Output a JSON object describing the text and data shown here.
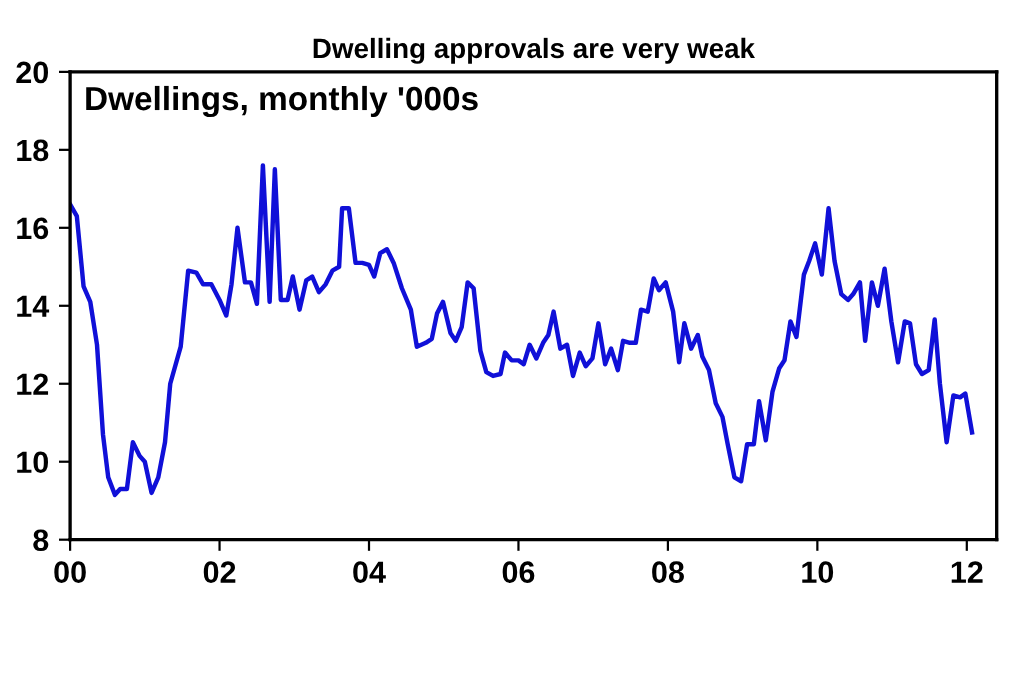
{
  "chart_data": {
    "type": "line",
    "title": "Dwelling approvals are very weak",
    "annotations": [
      "Dwellings, monthly '000s"
    ],
    "xlim": [
      2000,
      2012.4
    ],
    "xticks": [
      {
        "value": 2000,
        "label": "00"
      },
      {
        "value": 2002,
        "label": "02"
      },
      {
        "value": 2004,
        "label": "04"
      },
      {
        "value": 2006,
        "label": "06"
      },
      {
        "value": 2008,
        "label": "08"
      },
      {
        "value": 2010,
        "label": "10"
      },
      {
        "value": 2012,
        "label": "12"
      }
    ],
    "ylim": [
      8,
      20
    ],
    "yticks": [
      8,
      10,
      12,
      14,
      16,
      18,
      20
    ],
    "marker": "none",
    "line_style": "solid",
    "series": [
      {
        "color": "#1010d8",
        "x": [
          2000.0,
          2000.09,
          2000.18,
          2000.27,
          2000.36,
          2000.44,
          2000.51,
          2000.6,
          2000.67,
          2000.76,
          2000.84,
          2000.93,
          2001.0,
          2001.09,
          2001.18,
          2001.27,
          2001.34,
          2001.48,
          2001.58,
          2001.69,
          2001.78,
          2001.89,
          2002.0,
          2002.09,
          2002.16,
          2002.24,
          2002.34,
          2002.42,
          2002.5,
          2002.58,
          2002.67,
          2002.74,
          2002.82,
          2002.91,
          2002.98,
          2003.07,
          2003.16,
          2003.24,
          2003.33,
          2003.42,
          2003.51,
          2003.6,
          2003.64,
          2003.73,
          2003.82,
          2003.91,
          2004.0,
          2004.07,
          2004.15,
          2004.24,
          2004.33,
          2004.44,
          2004.56,
          2004.64,
          2004.76,
          2004.84,
          2004.91,
          2004.99,
          2005.09,
          2005.16,
          2005.24,
          2005.32,
          2005.4,
          2005.49,
          2005.57,
          2005.66,
          2005.76,
          2005.82,
          2005.91,
          2006.0,
          2006.07,
          2006.15,
          2006.24,
          2006.33,
          2006.4,
          2006.47,
          2006.56,
          2006.65,
          2006.73,
          2006.82,
          2006.9,
          2006.99,
          2007.07,
          2007.16,
          2007.24,
          2007.33,
          2007.4,
          2007.49,
          2007.57,
          2007.64,
          2007.73,
          2007.81,
          2007.88,
          2007.97,
          2008.07,
          2008.15,
          2008.22,
          2008.31,
          2008.4,
          2008.46,
          2008.55,
          2008.64,
          2008.73,
          2008.8,
          2008.89,
          2008.98,
          2009.06,
          2009.15,
          2009.22,
          2009.31,
          2009.4,
          2009.49,
          2009.56,
          2009.64,
          2009.72,
          2009.82,
          2009.89,
          2009.97,
          2010.06,
          2010.15,
          2010.23,
          2010.32,
          2010.41,
          2010.48,
          2010.57,
          2010.64,
          2010.73,
          2010.81,
          2010.9,
          2010.99,
          2011.08,
          2011.17,
          2011.24,
          2011.32,
          2011.4,
          2011.49,
          2011.57,
          2011.64,
          2011.73,
          2011.82,
          2011.91,
          2011.98,
          2012.07
        ],
        "values": [
          16.6,
          16.3,
          14.5,
          14.1,
          13.0,
          10.7,
          9.6,
          9.15,
          9.3,
          9.3,
          10.5,
          10.15,
          10.0,
          9.2,
          9.6,
          10.5,
          12.0,
          12.95,
          14.9,
          14.85,
          14.55,
          14.55,
          14.15,
          13.75,
          14.55,
          16.0,
          14.6,
          14.6,
          14.05,
          17.6,
          14.1,
          17.5,
          14.15,
          14.15,
          14.75,
          13.9,
          14.65,
          14.75,
          14.35,
          14.55,
          14.9,
          15.0,
          16.5,
          16.5,
          15.1,
          15.1,
          15.05,
          14.75,
          15.35,
          15.45,
          15.1,
          14.45,
          13.9,
          12.95,
          13.05,
          13.15,
          13.8,
          14.1,
          13.3,
          13.1,
          13.45,
          14.6,
          14.45,
          12.85,
          12.3,
          12.2,
          12.25,
          12.8,
          12.6,
          12.6,
          12.5,
          13.0,
          12.65,
          13.05,
          13.25,
          13.85,
          12.9,
          13.0,
          12.2,
          12.8,
          12.45,
          12.65,
          13.55,
          12.5,
          12.9,
          12.35,
          13.1,
          13.05,
          13.05,
          13.9,
          13.85,
          14.7,
          14.4,
          14.6,
          13.85,
          12.55,
          13.55,
          12.9,
          13.25,
          12.7,
          12.35,
          11.5,
          11.15,
          10.45,
          9.6,
          9.5,
          10.45,
          10.45,
          11.55,
          10.55,
          11.8,
          12.4,
          12.6,
          13.6,
          13.2,
          14.8,
          15.15,
          15.6,
          14.8,
          16.5,
          15.15,
          14.3,
          14.15,
          14.3,
          14.6,
          13.1,
          14.6,
          14.0,
          14.95,
          13.6,
          12.55,
          13.6,
          13.55,
          12.5,
          12.25,
          12.35,
          13.65,
          12.0,
          10.5,
          11.7,
          11.65,
          11.75,
          10.75
        ]
      }
    ]
  }
}
